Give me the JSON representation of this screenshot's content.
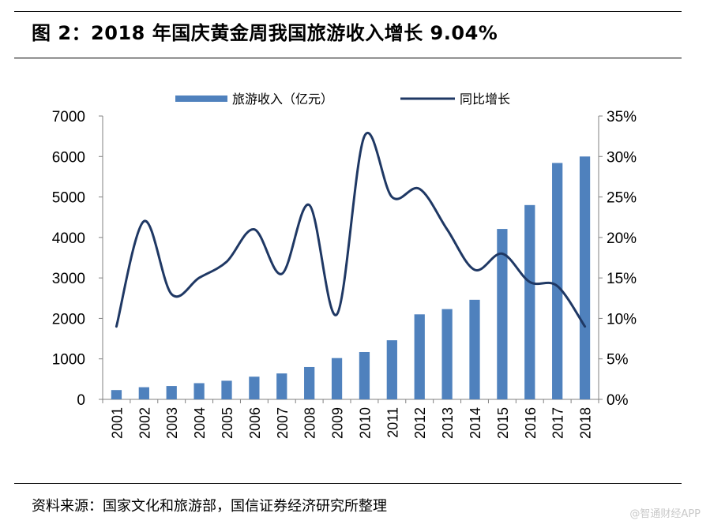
{
  "header": {
    "title": "图 2：2018 年国庆黄金周我国旅游收入增长 9.04%"
  },
  "footer": {
    "source": "资料来源：国家文化和旅游部，国信证券经济研究所整理",
    "watermark": "@智通财经APP"
  },
  "colors": {
    "bar": "#4f81bd",
    "line": "#1f3864",
    "axis": "#808080",
    "text": "#000000"
  },
  "chart_data": {
    "type": "bar",
    "title": "",
    "categories": [
      "2001",
      "2002",
      "2003",
      "2004",
      "2005",
      "2006",
      "2007",
      "2008",
      "2009",
      "2010",
      "2011",
      "2012",
      "2013",
      "2014",
      "2015",
      "2016",
      "2017",
      "2018"
    ],
    "series": [
      {
        "name": "旅游收入（亿元）",
        "type": "bar",
        "axis": "left",
        "values": [
          230,
          300,
          330,
          400,
          460,
          560,
          640,
          800,
          1020,
          1170,
          1460,
          2100,
          2230,
          2460,
          4210,
          4800,
          5840,
          6000
        ]
      },
      {
        "name": "同比增长",
        "type": "line",
        "axis": "right",
        "values": [
          9.0,
          22.0,
          13.0,
          15.0,
          17.0,
          21.0,
          15.5,
          24.0,
          10.5,
          32.5,
          25.0,
          26.0,
          21.0,
          16.0,
          18.0,
          14.5,
          14.0,
          9.0
        ]
      }
    ],
    "left_axis": {
      "range": [
        0,
        7000
      ],
      "ticks": [
        0,
        1000,
        2000,
        3000,
        4000,
        5000,
        6000,
        7000
      ],
      "tick_labels": [
        "0",
        "1000",
        "2000",
        "3000",
        "4000",
        "5000",
        "6000",
        "7000"
      ]
    },
    "right_axis": {
      "range": [
        0,
        35
      ],
      "ticks": [
        0,
        5,
        10,
        15,
        20,
        25,
        30,
        35
      ],
      "tick_labels": [
        "0%",
        "5%",
        "10%",
        "15%",
        "20%",
        "25%",
        "30%",
        "35%"
      ]
    },
    "xlabel": "",
    "ylabel": "",
    "grid": false,
    "legend_position": "top-center"
  }
}
